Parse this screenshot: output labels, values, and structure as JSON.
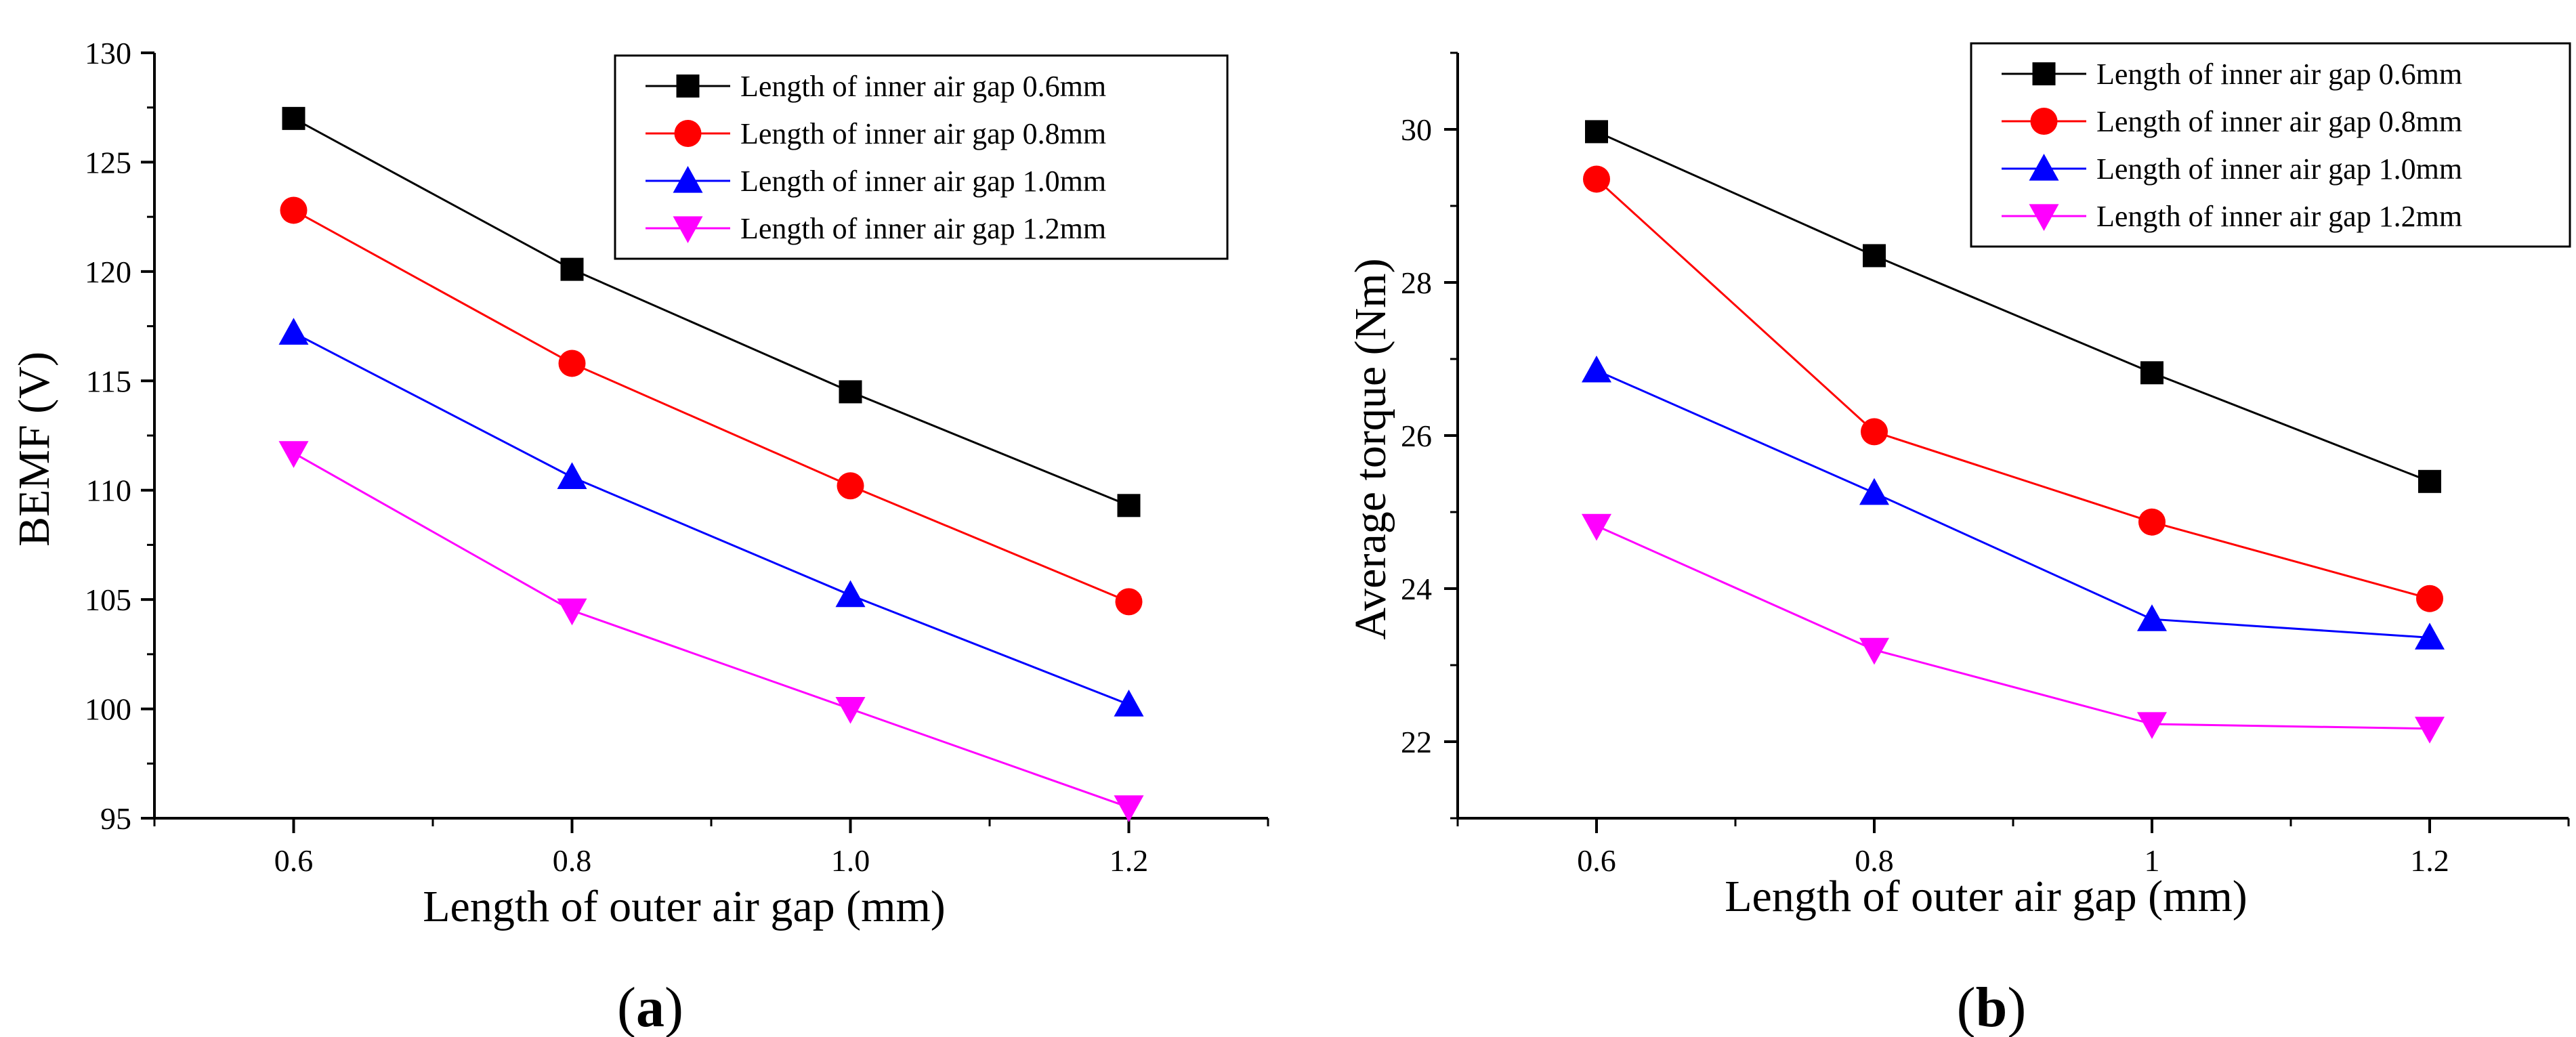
{
  "chart_data": [
    {
      "type": "line",
      "panel_label": "a",
      "title": "",
      "xlabel": "Length of outer air gap (mm)",
      "ylabel": "BEMF (V)",
      "x": [
        0.6,
        0.8,
        1.0,
        1.2
      ],
      "x_tick_labels": [
        "0.6",
        "0.8",
        "1.0",
        "1.2"
      ],
      "xlim": [
        0.5,
        1.3
      ],
      "ylim": [
        95,
        130
      ],
      "y_ticks": [
        95,
        100,
        105,
        110,
        115,
        120,
        125,
        130
      ],
      "y_tick_labels": [
        "95",
        "100",
        "105",
        "110",
        "115",
        "120",
        "125",
        "130"
      ],
      "legend_position": "top-right",
      "series": [
        {
          "name": "Length of inner air gap 0.6mm",
          "color": "#000000",
          "marker": "square",
          "values": [
            127.0,
            120.1,
            114.5,
            109.3
          ]
        },
        {
          "name": "Length of inner air gap 0.8mm",
          "color": "#ff0000",
          "marker": "circle",
          "values": [
            122.8,
            115.8,
            110.2,
            104.9
          ]
        },
        {
          "name": "Length of inner air gap 1.0mm",
          "color": "#0000ff",
          "marker": "triangle-up",
          "values": [
            117.2,
            110.6,
            105.2,
            100.2
          ]
        },
        {
          "name": "Length of inner air gap 1.2mm",
          "color": "#ff00ff",
          "marker": "triangle-down",
          "values": [
            111.7,
            104.5,
            100.0,
            95.5
          ]
        }
      ]
    },
    {
      "type": "line",
      "panel_label": "b",
      "title": "",
      "xlabel": "Length of outer air gap (mm)",
      "ylabel": "Average torque (Nm)",
      "x": [
        0.6,
        0.8,
        1.0,
        1.2
      ],
      "x_tick_labels": [
        "0.6",
        "0.8",
        "1",
        "1.2"
      ],
      "xlim": [
        0.5,
        1.3
      ],
      "ylim": [
        21,
        31
      ],
      "y_ticks": [
        22,
        24,
        26,
        28,
        30
      ],
      "y_tick_labels": [
        "22",
        "24",
        "26",
        "28",
        "30"
      ],
      "legend_position": "top-right",
      "series": [
        {
          "name": "Length of inner air gap 0.6mm",
          "color": "#000000",
          "marker": "square",
          "values": [
            29.97,
            28.35,
            26.82,
            25.4
          ]
        },
        {
          "name": "Length of inner air gap 0.8mm",
          "color": "#ff0000",
          "marker": "circle",
          "values": [
            29.35,
            26.05,
            24.87,
            23.87
          ]
        },
        {
          "name": "Length of inner air gap 1.0mm",
          "color": "#0000ff",
          "marker": "triangle-up",
          "values": [
            26.85,
            25.25,
            23.6,
            23.36
          ]
        },
        {
          "name": "Length of inner air gap 1.2mm",
          "color": "#ff00ff",
          "marker": "triangle-down",
          "values": [
            24.82,
            23.2,
            22.23,
            22.17
          ]
        }
      ]
    }
  ]
}
